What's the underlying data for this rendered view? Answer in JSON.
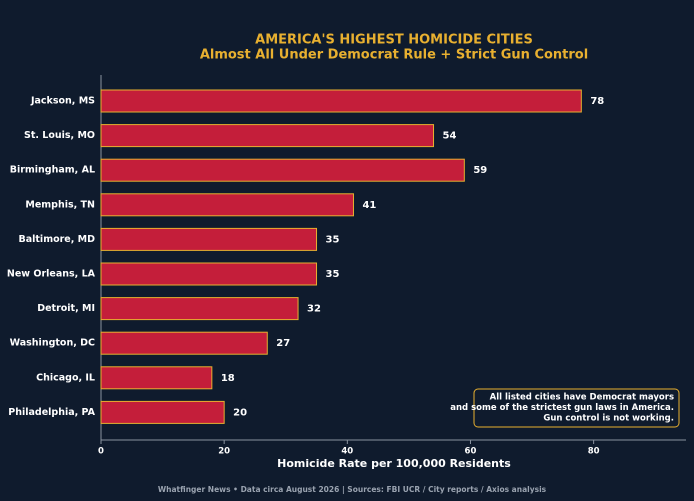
{
  "chart_data": {
    "type": "bar",
    "orientation": "horizontal",
    "title": "AMERICA'S HIGHEST HOMICIDE CITIES",
    "subtitle": "Almost All Under Democrat Rule + Strict Gun Control",
    "categories": [
      "Jackson, MS",
      "St. Louis, MO",
      "Birmingham, AL",
      "Memphis, TN",
      "Baltimore, MD",
      "New Orleans, LA",
      "Detroit, MI",
      "Washington, DC",
      "Chicago, IL",
      "Philadelphia, PA"
    ],
    "values": [
      78,
      54,
      59,
      41,
      35,
      35,
      32,
      27,
      18,
      20
    ],
    "color": "#c41e3a",
    "edge_color": "#e8b030",
    "xlabel": "Homicide Rate per 100,000 Residents",
    "xlim": [
      0,
      95
    ],
    "xticks": [
      0,
      20,
      40,
      60,
      80
    ],
    "annotation": [
      "All listed cities have Democrat mayors",
      "and some of the strictest gun laws in America.",
      "Gun control is not working."
    ],
    "footer": "Whatfinger News • Data circa August 2026  |  Sources: FBI UCR / City reports / Axios analysis"
  }
}
